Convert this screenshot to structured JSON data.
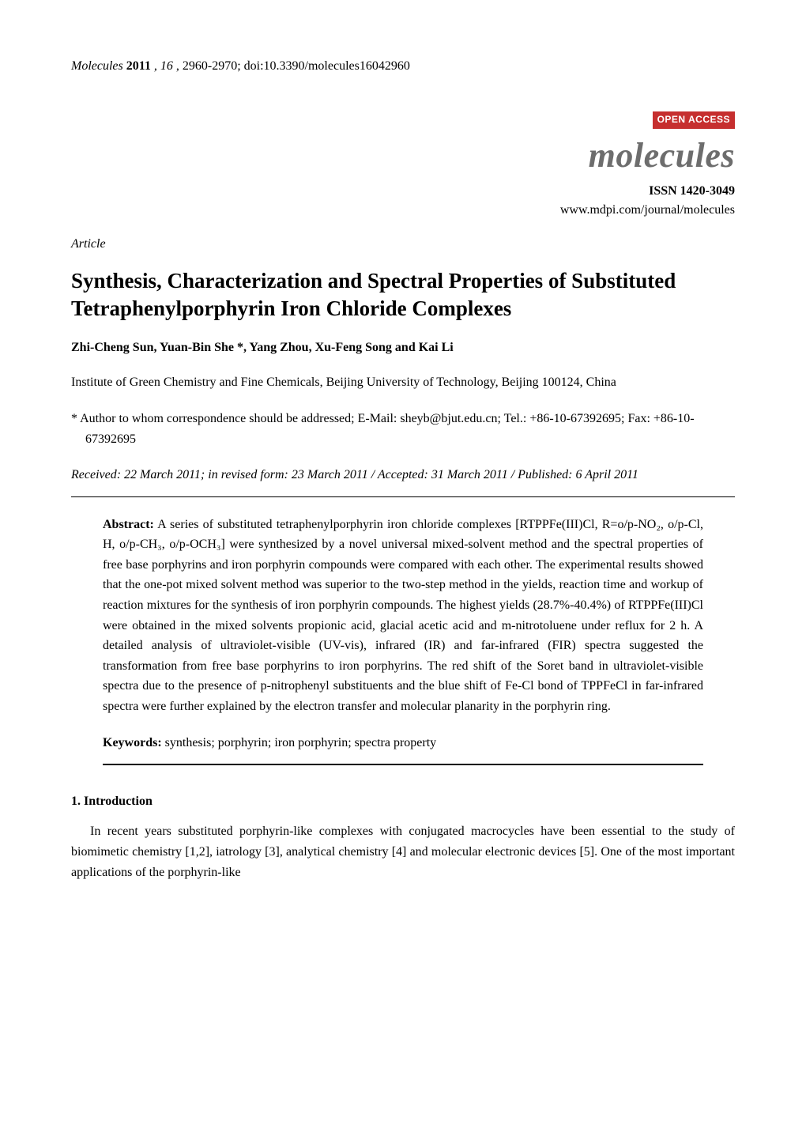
{
  "running_header": {
    "journal_italic": "Molecules",
    "year_bold": "2011",
    "rest": ", 16, 2960-2970; doi:10.3390/molecules16042960"
  },
  "open_access": {
    "label": "OPEN ACCESS",
    "bg_color": "#c62f2f",
    "text_color": "#ffffff"
  },
  "journal": {
    "name": "molecules",
    "name_color": "#6d6d6d",
    "issn": "ISSN 1420-3049",
    "url": "www.mdpi.com/journal/molecules"
  },
  "article": {
    "type": "Article",
    "title": "Synthesis, Characterization and Spectral Properties of Substituted Tetraphenylporphyrin Iron Chloride Complexes",
    "authors": "Zhi-Cheng Sun, Yuan-Bin She *, Yang Zhou, Xu-Feng Song and Kai Li",
    "affiliation": "Institute of Green Chemistry and Fine Chemicals, Beijing University of Technology, Beijing 100124, China",
    "correspondence": "*  Author to whom correspondence should be addressed; E-Mail: sheyb@bjut.edu.cn; Tel.: +86-10-67392695; Fax: +86-10-67392695",
    "dates": "Received: 22 March 2011; in revised form: 23 March 2011 / Accepted: 31 March 2011 / Published: 6 April 2011"
  },
  "abstract": {
    "label": "Abstract:",
    "text": " A series of substituted tetraphenylporphyrin iron chloride complexes [RTPPFe(III)Cl, R=o/p-NO₂, o/p-Cl, H, o/p-CH₃, o/p-OCH₃] were synthesized by a novel universal mixed-solvent method and the spectral properties of free base porphyrins and iron porphyrin compounds were compared with each other. The experimental results showed that the one-pot mixed solvent method was superior to the two-step method in the yields, reaction time and workup of reaction mixtures for the synthesis of iron porphyrin compounds. The highest yields (28.7%-40.4%) of RTPPFe(III)Cl were obtained in the mixed solvents propionic acid, glacial acetic acid and m-nitrotoluene under reflux for 2 h. A detailed analysis of ultraviolet-visible (UV-vis), infrared (IR) and far-infrared (FIR) spectra suggested the transformation from free base porphyrins to iron porphyrins. The red shift of the Soret band in ultraviolet-visible spectra due to the presence of p-nitrophenyl substituents and the blue shift of Fe-Cl bond of TPPFeCl in far-infrared spectra were further explained by the electron transfer and molecular planarity in the porphyrin ring."
  },
  "keywords": {
    "label": "Keywords:",
    "text": " synthesis; porphyrin; iron porphyrin; spectra property"
  },
  "section1": {
    "heading": "1. Introduction",
    "para1": "In recent years substituted porphyrin-like complexes with conjugated macrocycles have been essential to the study of biomimetic chemistry [1,2], iatrology [3], analytical chemistry [4] and molecular electronic devices [5]. One of the most important applications of the porphyrin-like"
  },
  "colors": {
    "text": "#000000",
    "background": "#ffffff",
    "rule": "#000000"
  }
}
